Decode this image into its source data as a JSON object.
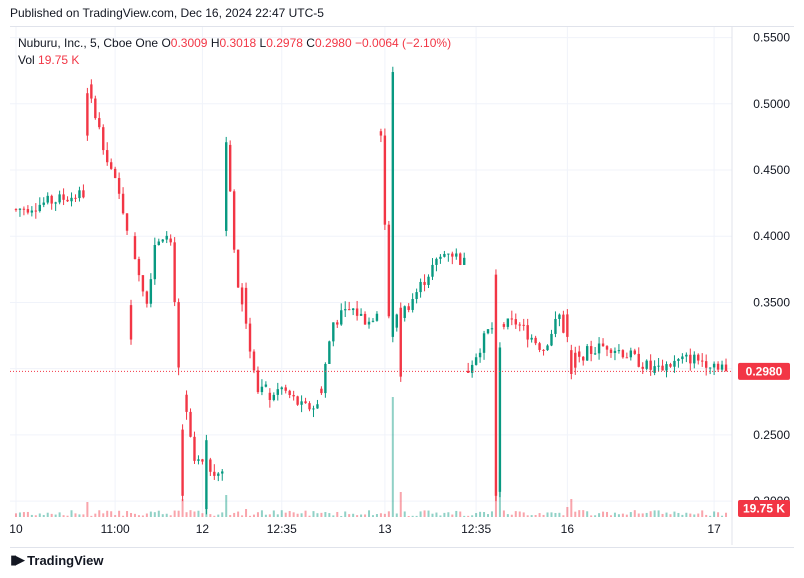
{
  "header": {
    "published": "Published on TradingView.com, Dec 16, 2024 22:47 UTC-5"
  },
  "legend": {
    "symbol": "Nuburu, Inc., 5, Cboe One",
    "o_label": "O",
    "o_value": "0.3009",
    "h_label": "H",
    "h_value": "0.3018",
    "l_label": "L",
    "l_value": "0.2978",
    "c_label": "C",
    "c_value": "0.2980",
    "change": "−0.0064 (−2.10%)",
    "vol_label": "Vol",
    "vol_value": "19.75 K"
  },
  "price_badge": "0.2980",
  "volume_badge": "19.75 K",
  "footer": {
    "logo_text": "TradingView"
  },
  "colors": {
    "up": "#089981",
    "down": "#f23645",
    "grid": "#f0f3fa",
    "text": "#131722"
  },
  "chart_data": {
    "type": "candlestick",
    "y_ticks": [
      "0.2000",
      "0.2500",
      "0.3000",
      "0.3500",
      "0.4000",
      "0.4500",
      "0.5000",
      "0.5500"
    ],
    "ylim": [
      0.188,
      0.558
    ],
    "x_ticks": [
      "10",
      "11:00",
      "12",
      "12:35",
      "13",
      "12:35",
      "16",
      "17"
    ],
    "last_price": 0.298,
    "segments": [
      {
        "from": 0,
        "to": 17,
        "path": [
          [
            0.42,
            0
          ],
          [
            0.432,
            1
          ],
          [
            0.426,
            1
          ],
          [
            0.43,
            1
          ]
        ]
      },
      {
        "from": 18,
        "to": 38,
        "path": [
          [
            0.512,
            0
          ],
          [
            0.47,
            0.2
          ],
          [
            0.42,
            0.45
          ],
          [
            0.35,
            0.75
          ],
          [
            0.395,
            0.85
          ],
          [
            0.405,
            1
          ]
        ]
      },
      {
        "from": 39,
        "to": 52,
        "path": [
          [
            0.395,
            0
          ],
          [
            0.3,
            0.15
          ],
          [
            0.23,
            0.45
          ],
          [
            0.225,
            0.8
          ],
          [
            0.22,
            1
          ]
        ]
      },
      {
        "from": 53,
        "to": 63,
        "path": [
          [
            0.47,
            0
          ],
          [
            0.37,
            0.25
          ],
          [
            0.335,
            0.5
          ],
          [
            0.28,
            0.8
          ],
          [
            0.285,
            1
          ]
        ]
      },
      {
        "from": 64,
        "to": 76,
        "path": [
          [
            0.28,
            0
          ],
          [
            0.285,
            0.25
          ],
          [
            0.27,
            0.7
          ],
          [
            0.272,
            1
          ]
        ]
      },
      {
        "from": 77,
        "to": 91,
        "path": [
          [
            0.285,
            0
          ],
          [
            0.335,
            0.2
          ],
          [
            0.345,
            0.55
          ],
          [
            0.335,
            0.85
          ],
          [
            0.345,
            1
          ]
        ]
      },
      {
        "from": 92,
        "to": 113,
        "path": [
          [
            0.48,
            0
          ],
          [
            0.33,
            0.1
          ],
          [
            0.35,
            0.35
          ],
          [
            0.375,
            0.6
          ],
          [
            0.39,
            0.8
          ],
          [
            0.38,
            1
          ]
        ]
      },
      {
        "from": 114,
        "to": 141,
        "path": [
          [
            0.3,
            0
          ],
          [
            0.33,
            0.2
          ],
          [
            0.335,
            0.45
          ],
          [
            0.315,
            0.7
          ],
          [
            0.34,
            0.85
          ],
          [
            0.3,
            1
          ]
        ]
      },
      {
        "from": 142,
        "to": 160,
        "path": [
          [
            0.31,
            0
          ],
          [
            0.318,
            0.4
          ],
          [
            0.31,
            0.7
          ],
          [
            0.3,
            1
          ]
        ]
      },
      {
        "from": 161,
        "to": 179,
        "path": [
          [
            0.3,
            0
          ],
          [
            0.308,
            0.5
          ],
          [
            0.302,
            1
          ]
        ]
      }
    ],
    "spikes": [
      {
        "bar": 18,
        "high": 0.512,
        "low": 0.472,
        "dir": "down",
        "vol": 15
      },
      {
        "bar": 29,
        "high": 0.352,
        "low": 0.318,
        "dir": "down",
        "vol": 4
      },
      {
        "bar": 42,
        "high": 0.258,
        "low": 0.2,
        "dir": "down",
        "vol": 18
      },
      {
        "bar": 48,
        "high": 0.25,
        "low": 0.19,
        "dir": "up",
        "vol": 14
      },
      {
        "bar": 53,
        "high": 0.475,
        "low": 0.4,
        "dir": "up",
        "vol": 22
      },
      {
        "bar": 58,
        "high": 0.365,
        "low": 0.33,
        "dir": "down",
        "vol": 8
      },
      {
        "bar": 95,
        "high": 0.528,
        "low": 0.32,
        "dir": "up",
        "vol": 120
      },
      {
        "bar": 97,
        "high": 0.35,
        "low": 0.29,
        "dir": "down",
        "vol": 25
      },
      {
        "bar": 121,
        "high": 0.375,
        "low": 0.2,
        "dir": "down",
        "vol": 50
      },
      {
        "bar": 122,
        "high": 0.32,
        "low": 0.203,
        "dir": "up",
        "vol": 45
      },
      {
        "bar": 139,
        "high": 0.345,
        "low": 0.32,
        "dir": "down",
        "vol": 10
      },
      {
        "bar": 140,
        "high": 0.318,
        "low": 0.292,
        "dir": "down",
        "vol": 18
      }
    ]
  }
}
